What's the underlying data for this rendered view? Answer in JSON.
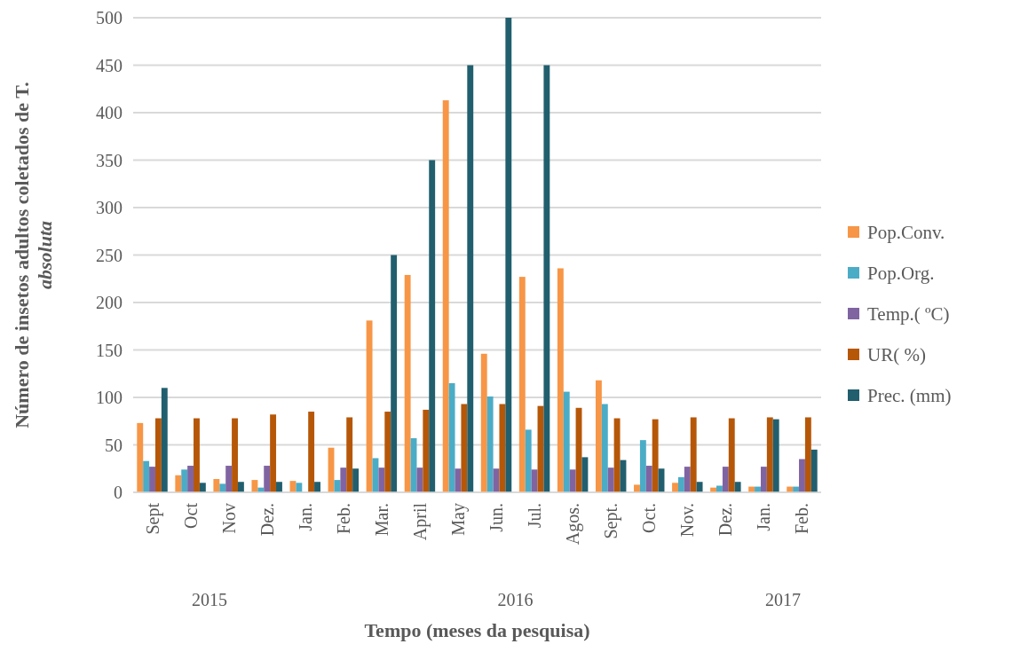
{
  "chart_data": {
    "type": "bar",
    "xlabel": "Tempo (meses da pesquisa)",
    "ylabel": "Número de insetos adultos coletados de T. absoluta",
    "categories": [
      "Sept",
      "Oct",
      "Nov",
      "Dez.",
      "Jan.",
      "Feb.",
      "Mar.",
      "April",
      "May",
      "Jun.",
      "Jul.",
      "Agos.",
      "Sept.",
      "Oct.",
      "Nov.",
      "Dez.",
      "Jan.",
      "Feb."
    ],
    "series": [
      {
        "name": "Pop.Conv.",
        "color": "#f79646",
        "values": [
          73,
          18,
          14,
          13,
          12,
          47,
          181,
          229,
          413,
          146,
          227,
          236,
          118,
          8,
          10,
          5,
          6,
          6
        ]
      },
      {
        "name": "Pop.Org.",
        "color": "#4bacc6",
        "values": [
          33,
          24,
          9,
          5,
          10,
          13,
          36,
          57,
          115,
          101,
          66,
          106,
          93,
          55,
          16,
          7,
          6,
          6
        ]
      },
      {
        "name": "Temp.( ºC)",
        "color": "#8064a2",
        "values": [
          27,
          28,
          28,
          28,
          0,
          26,
          26,
          26,
          25,
          25,
          24,
          24,
          26,
          28,
          27,
          27,
          27,
          35
        ]
      },
      {
        "name": "UR( %)",
        "color": "#b65708",
        "values": [
          78,
          78,
          78,
          82,
          85,
          79,
          85,
          87,
          93,
          93,
          91,
          89,
          78,
          77,
          79,
          78,
          79,
          79
        ]
      },
      {
        "name": "Prec. (mm)",
        "color": "#215f6e",
        "values": [
          110,
          10,
          11,
          11,
          11,
          25,
          250,
          350,
          450,
          500,
          450,
          37,
          34,
          25,
          11,
          11,
          77,
          45
        ]
      }
    ],
    "annotations": [
      "2015",
      "2016",
      "2017"
    ],
    "ylim": [
      0,
      500
    ],
    "yticks": [
      0,
      50,
      100,
      150,
      200,
      250,
      300,
      350,
      400,
      450,
      500
    ],
    "grid": "y",
    "legend": "right"
  }
}
